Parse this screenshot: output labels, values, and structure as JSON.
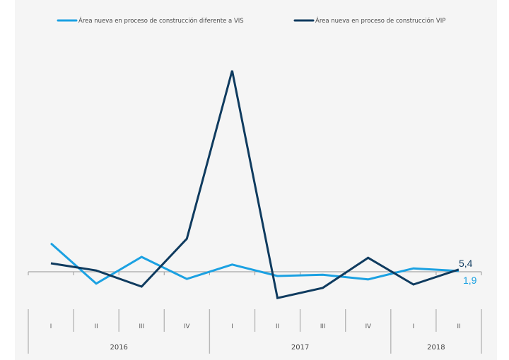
{
  "chart_data": {
    "type": "line",
    "title": "",
    "xlabel": "",
    "ylabel": "",
    "grid": false,
    "legend_position": "top",
    "ylim": [
      -100,
      480
    ],
    "categories": [
      {
        "quarter": "I",
        "year": "2016"
      },
      {
        "quarter": "II",
        "year": "2016"
      },
      {
        "quarter": "III",
        "year": "2016"
      },
      {
        "quarter": "IV",
        "year": "2016"
      },
      {
        "quarter": "I",
        "year": "2017"
      },
      {
        "quarter": "II",
        "year": "2017"
      },
      {
        "quarter": "III",
        "year": "2017"
      },
      {
        "quarter": "IV",
        "year": "2017"
      },
      {
        "quarter": "I",
        "year": "2018"
      },
      {
        "quarter": "II",
        "year": "2018"
      }
    ],
    "quarter_labels": [
      "I",
      "II",
      "III",
      "IV",
      "I",
      "II",
      "III",
      "IV",
      "I",
      "II"
    ],
    "years": [
      {
        "label": "2016",
        "quarters": 4
      },
      {
        "label": "2017",
        "quarters": 4
      },
      {
        "label": "2018",
        "quarters": 2
      }
    ],
    "series": [
      {
        "name": "Área nueva en proceso de construcción diferente a VIS",
        "color": "#1ba1e2",
        "values": [
          67,
          -28,
          35,
          -17,
          17,
          -10,
          -7,
          -18,
          8,
          1.9
        ],
        "end_label": "1,9"
      },
      {
        "name": "Área nueva en proceso de construcción VIP",
        "color": "#0f3b5f",
        "values": [
          20,
          3,
          -35,
          78,
          475,
          -62,
          -38,
          33,
          -30,
          5.4
        ],
        "end_label": "5,4"
      }
    ]
  }
}
